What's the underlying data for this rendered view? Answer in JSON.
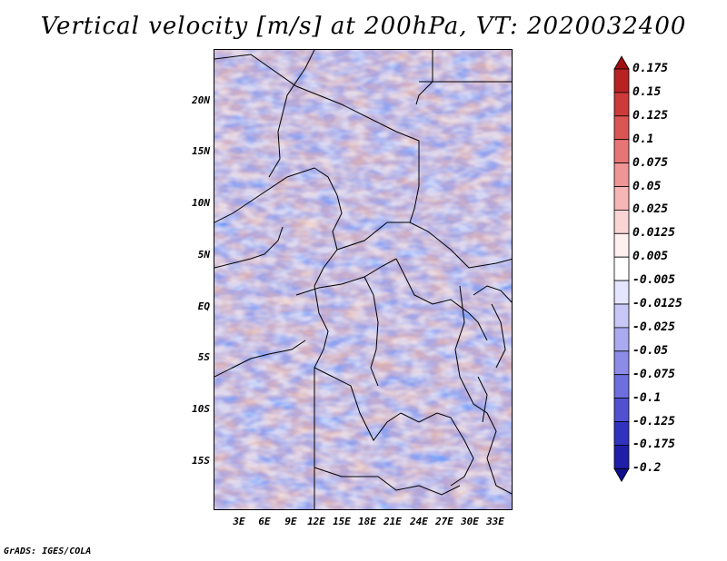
{
  "title": "Vertical velocity [m/s] at 200hPa, VT: 2020032400",
  "footer": "GrADS: IGES/COLA",
  "map": {
    "region": "Central Africa",
    "variable": "Vertical velocity",
    "level": "200hPa",
    "valid_time": "2020032400",
    "lat_labels": [
      "20N",
      "15N",
      "10N",
      "5N",
      "EQ",
      "5S",
      "10S",
      "15S"
    ],
    "lon_labels": [
      "3E",
      "6E",
      "9E",
      "12E",
      "15E",
      "18E",
      "21E",
      "24E",
      "27E",
      "30E",
      "33E"
    ]
  },
  "colorbar": {
    "labels": [
      "0.175",
      "0.15",
      "0.125",
      "0.1",
      "0.075",
      "0.05",
      "0.025",
      "0.0125",
      "0.005",
      "-0.005",
      "-0.0125",
      "-0.025",
      "-0.05",
      "-0.075",
      "-0.1",
      "-0.125",
      "-0.175",
      "-0.2"
    ],
    "colors": [
      "#a01010",
      "#b82222",
      "#cc3a3a",
      "#dc5555",
      "#e87575",
      "#f09595",
      "#f7b5b5",
      "#fbd5d5",
      "#fff0f0",
      "#ffffff",
      "#e5e5ff",
      "#c8c8f8",
      "#aaaaf0",
      "#8c8ce8",
      "#6e6ede",
      "#5050d0",
      "#3232c0",
      "#1e1ea8",
      "#10108a"
    ]
  }
}
